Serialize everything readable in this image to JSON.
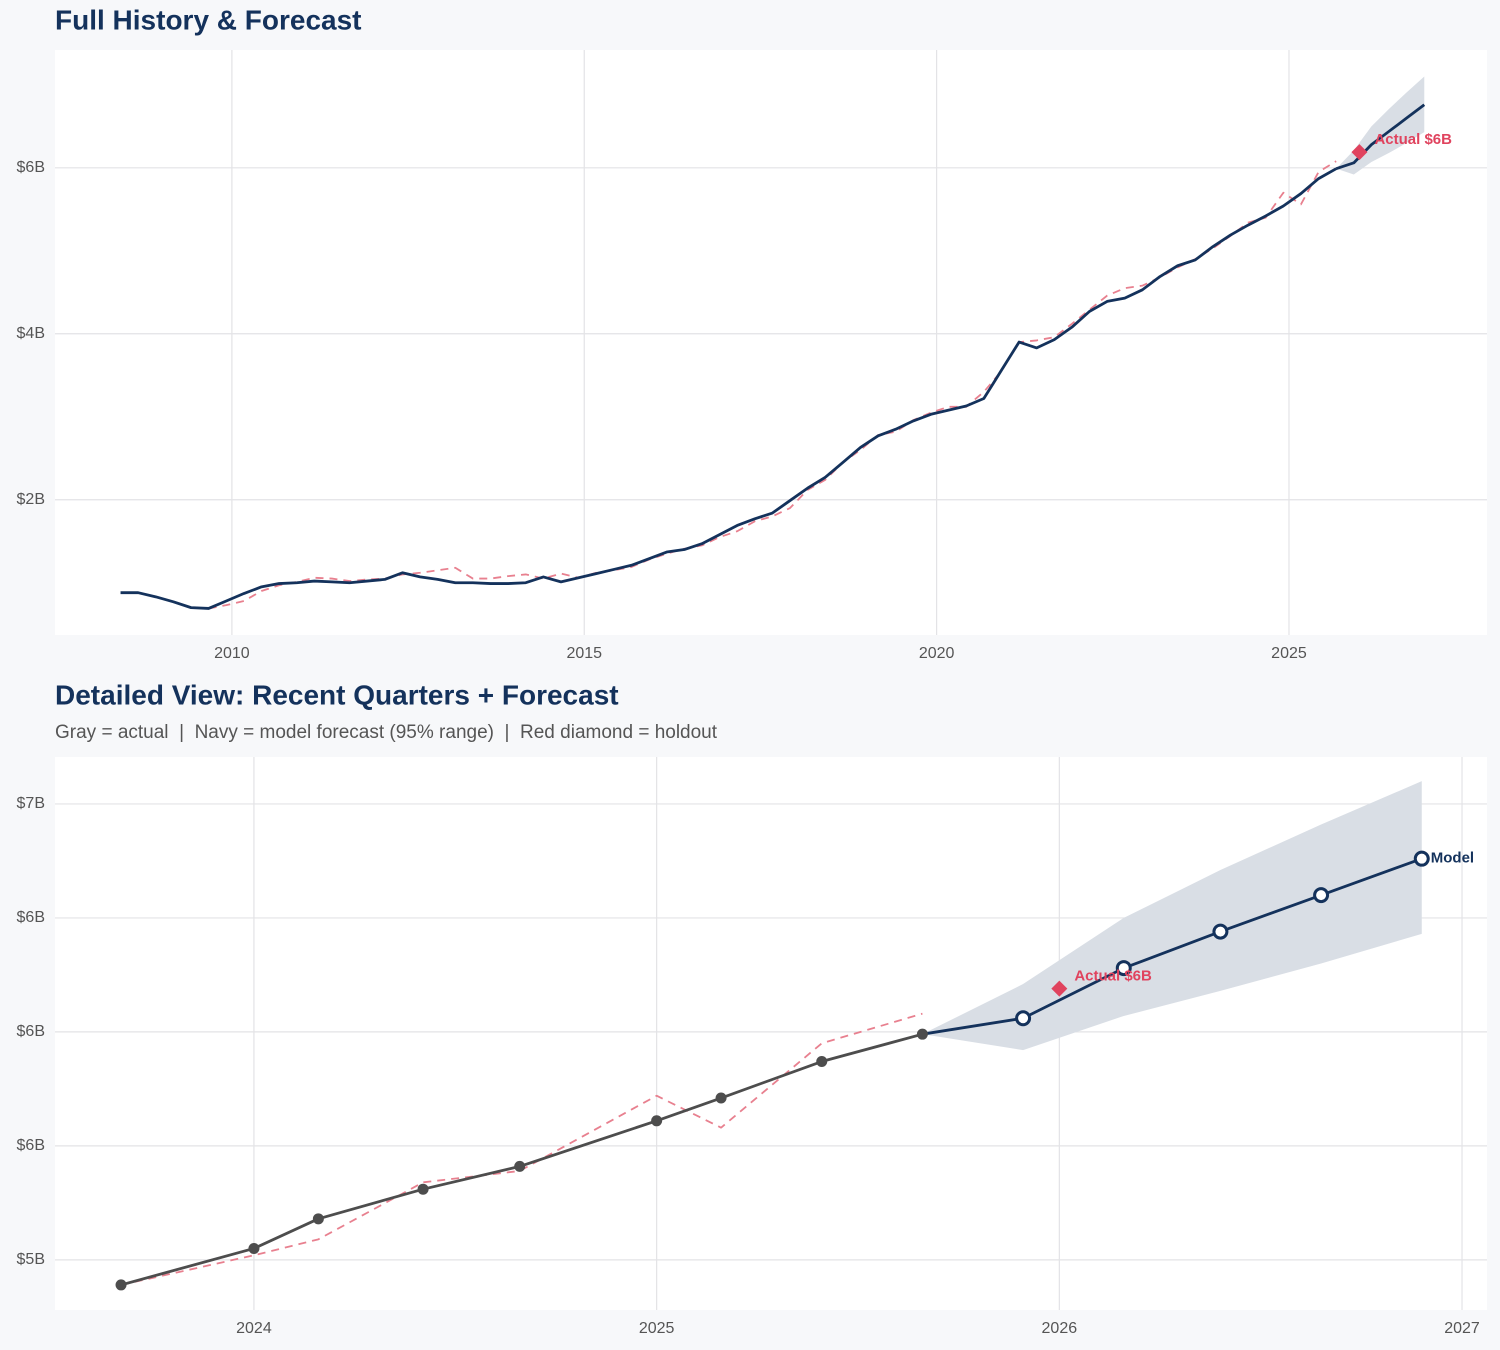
{
  "chart_data": [
    {
      "type": "line",
      "title": "Full History & Forecast",
      "xlim": [
        2007.49,
        2027.81
      ],
      "xticks": [
        2010,
        2015,
        2020,
        2025
      ],
      "ylim": [
        0.37,
        7.42
      ],
      "yticks": [
        {
          "value": 2,
          "label": "$2B"
        },
        {
          "value": 4,
          "label": "$4B"
        },
        {
          "value": 6,
          "label": "$6B"
        }
      ],
      "grid": true,
      "band": {
        "color": "#d9dee5",
        "x": [
          2025.67,
          2025.92,
          2026.17,
          2026.42,
          2026.67,
          2026.92
        ],
        "upper": [
          5.99,
          6.21,
          6.5,
          6.71,
          6.91,
          7.1
        ],
        "lower": [
          5.99,
          5.92,
          6.07,
          6.18,
          6.3,
          6.43
        ]
      },
      "series": [
        {
          "color": "#e8808f",
          "dashed": true,
          "x": [
            2009.67,
            2009.92,
            2010.17,
            2010.42,
            2010.67,
            2010.92,
            2011.17,
            2011.42,
            2011.67,
            2011.92,
            2012.17,
            2012.42,
            2012.67,
            2012.92,
            2013.17,
            2013.42,
            2013.67,
            2013.92,
            2014.17,
            2014.42,
            2014.67,
            2014.92,
            2015.17,
            2015.42,
            2015.67,
            2015.92,
            2016.17,
            2016.42,
            2016.67,
            2016.92,
            2017.17,
            2017.42,
            2017.67,
            2017.92,
            2018.17,
            2018.42,
            2018.67,
            2018.92,
            2019.17,
            2019.42,
            2019.67,
            2019.92,
            2020.17,
            2020.42,
            2020.67,
            2020.92,
            2021.17,
            2021.42,
            2021.67,
            2021.92,
            2022.17,
            2022.42,
            2022.67,
            2022.92,
            2023.17,
            2023.42,
            2023.67,
            2023.92,
            2024.17,
            2024.42,
            2024.67,
            2024.92,
            2025.17,
            2025.42,
            2025.67
          ],
          "values": [
            0.69,
            0.73,
            0.78,
            0.9,
            0.97,
            1.01,
            1.06,
            1.05,
            1.02,
            1.04,
            1.05,
            1.1,
            1.12,
            1.15,
            1.18,
            1.05,
            1.05,
            1.08,
            1.1,
            1.05,
            1.11,
            1.06,
            1.12,
            1.15,
            1.19,
            1.28,
            1.35,
            1.41,
            1.45,
            1.55,
            1.62,
            1.74,
            1.8,
            1.9,
            2.12,
            2.24,
            2.45,
            2.6,
            2.78,
            2.82,
            2.96,
            3.05,
            3.12,
            3.12,
            3.3,
            3.55,
            3.9,
            3.92,
            3.96,
            4.12,
            4.29,
            4.46,
            4.55,
            4.58,
            4.68,
            4.8,
            4.9,
            5.03,
            5.18,
            5.34,
            5.4,
            5.7,
            5.56,
            5.95,
            6.08
          ]
        },
        {
          "color": "#14325c",
          "x": [
            2008.42,
            2008.67,
            2008.92,
            2009.17,
            2009.42,
            2009.67,
            2009.92,
            2010.17,
            2010.42,
            2010.67,
            2010.92,
            2011.17,
            2011.42,
            2011.67,
            2011.92,
            2012.17,
            2012.42,
            2012.67,
            2012.92,
            2013.17,
            2013.42,
            2013.67,
            2013.92,
            2014.17,
            2014.42,
            2014.67,
            2014.92,
            2015.17,
            2015.42,
            2015.67,
            2015.92,
            2016.17,
            2016.42,
            2016.67,
            2016.92,
            2017.17,
            2017.42,
            2017.67,
            2017.92,
            2018.17,
            2018.42,
            2018.67,
            2018.92,
            2019.17,
            2019.42,
            2019.67,
            2019.92,
            2020.17,
            2020.42,
            2020.67,
            2020.92,
            2021.17,
            2021.42,
            2021.67,
            2021.92,
            2022.17,
            2022.42,
            2022.67,
            2022.92,
            2023.17,
            2023.42,
            2023.67,
            2023.92,
            2024.17,
            2024.42,
            2024.67,
            2024.92,
            2025.17,
            2025.42,
            2025.67
          ],
          "values": [
            0.88,
            0.88,
            0.83,
            0.77,
            0.7,
            0.69,
            0.78,
            0.87,
            0.95,
            0.99,
            1.0,
            1.02,
            1.01,
            1.0,
            1.02,
            1.04,
            1.12,
            1.07,
            1.04,
            1.0,
            1.0,
            0.99,
            0.99,
            1.0,
            1.07,
            1.01,
            1.06,
            1.11,
            1.16,
            1.21,
            1.29,
            1.37,
            1.4,
            1.47,
            1.58,
            1.69,
            1.77,
            1.84,
            1.99,
            2.14,
            2.27,
            2.45,
            2.63,
            2.77,
            2.85,
            2.95,
            3.03,
            3.08,
            3.13,
            3.22,
            3.56,
            3.9,
            3.83,
            3.93,
            4.08,
            4.27,
            4.39,
            4.43,
            4.53,
            4.69,
            4.82,
            4.89,
            5.05,
            5.19,
            5.31,
            5.42,
            5.54,
            5.69,
            5.87,
            5.99
          ]
        },
        {
          "color": "#14325c",
          "x": [
            2025.67,
            2025.92,
            2026.17,
            2026.42,
            2026.67,
            2026.92
          ],
          "values": [
            5.99,
            6.06,
            6.28,
            6.44,
            6.6,
            6.76
          ]
        }
      ],
      "holdout": {
        "x": 2026.0,
        "value": 6.19,
        "value_label": "Actual $6B",
        "color": "#e0435e"
      }
    },
    {
      "type": "line",
      "title": "Detailed View: Recent Quarters + Forecast",
      "subtitle": "Gray = actual  |  Navy = model forecast (95% range)  |  Red diamond = holdout",
      "xlim": [
        2023.506,
        2027.062
      ],
      "xticks": [
        2024,
        2025,
        2026,
        2027
      ],
      "ylim": [
        4.78,
        7.206
      ],
      "yticks": [
        {
          "value": 5,
          "label": "$5B"
        },
        {
          "value": 5.5,
          "label": "$6B"
        },
        {
          "value": 6,
          "label": "$6B"
        },
        {
          "value": 6.5,
          "label": "$6B"
        },
        {
          "value": 7,
          "label": "$7B"
        }
      ],
      "grid": true,
      "band": {
        "color": "#d9dee5",
        "x": [
          2025.66,
          2025.91,
          2026.16,
          2026.4,
          2026.65,
          2026.9
        ],
        "upper": [
          5.99,
          6.21,
          6.5,
          6.71,
          6.91,
          7.1
        ],
        "lower": [
          5.99,
          5.92,
          6.07,
          6.18,
          6.3,
          6.43
        ]
      },
      "series": [
        {
          "color": "#e8808f",
          "dashed": true,
          "x": [
            2023.67,
            2024.0,
            2024.16,
            2024.42,
            2024.66,
            2025.0,
            2025.16,
            2025.41,
            2025.66
          ],
          "values": [
            4.89,
            5.02,
            5.09,
            5.34,
            5.39,
            5.72,
            5.58,
            5.95,
            6.08
          ]
        },
        {
          "color": "#14325c",
          "marker": "open",
          "label": "Model",
          "x": [
            2025.66,
            2025.91,
            2026.16,
            2026.4,
            2026.65,
            2026.9
          ],
          "values": [
            5.99,
            6.06,
            6.28,
            6.44,
            6.6,
            6.76
          ]
        },
        {
          "color": "#4d4d4d",
          "marker": "filled",
          "x": [
            2023.67,
            2024.0,
            2024.16,
            2024.42,
            2024.66,
            2025.0,
            2025.16,
            2025.41,
            2025.66
          ],
          "values": [
            4.89,
            5.05,
            5.18,
            5.31,
            5.41,
            5.61,
            5.71,
            5.87,
            5.99
          ]
        }
      ],
      "holdout": {
        "x": 2026.0,
        "value": 6.19,
        "value_label": "Actual $6B",
        "color": "#e0435e"
      }
    }
  ]
}
